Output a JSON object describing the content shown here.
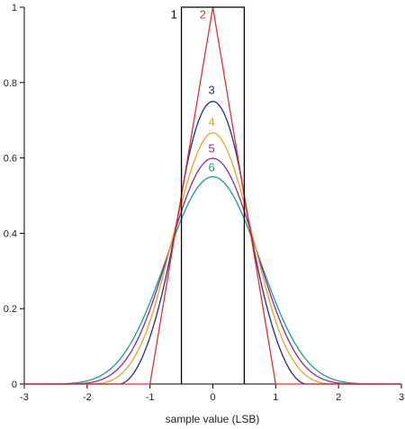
{
  "chart_data": {
    "type": "line",
    "title": "",
    "xlabel": "sample value (LSB)",
    "ylabel": "",
    "xlim": [
      -3,
      3
    ],
    "ylim": [
      0,
      1
    ],
    "xticks": [
      -3,
      -2,
      -1,
      0,
      1,
      2,
      3
    ],
    "yticks": [
      0,
      0.2,
      0.4,
      0.6,
      0.8,
      1
    ],
    "ytick_labels": [
      "0",
      "0.2",
      "0.4",
      "0.6",
      "0.8",
      "1"
    ],
    "grid": false,
    "series": [
      {
        "name": "1",
        "color": "#000000",
        "shape": "rectangular",
        "support": [
          -0.5,
          0.5
        ],
        "peak": 1
      },
      {
        "name": "2",
        "color": "#e0302f",
        "shape": "triangular",
        "support": [
          -1,
          1
        ],
        "peak": 1
      },
      {
        "name": "3",
        "color": "#1f2e8c",
        "shape": "piecewise-quadratic",
        "support": [
          -1.5,
          1.5
        ],
        "peak": 0.75
      },
      {
        "name": "4",
        "color": "#f0a020",
        "shape": "piecewise-cubic",
        "support": [
          -2,
          2
        ],
        "peak": 0.667
      },
      {
        "name": "5",
        "color": "#8e2a9a",
        "shape": "piecewise-quartic",
        "support": [
          -2.5,
          2.5
        ],
        "peak": 0.599
      },
      {
        "name": "6",
        "color": "#17a08a",
        "shape": "piecewise-quintic",
        "support": [
          -3,
          3
        ],
        "peak": 0.55
      }
    ]
  }
}
